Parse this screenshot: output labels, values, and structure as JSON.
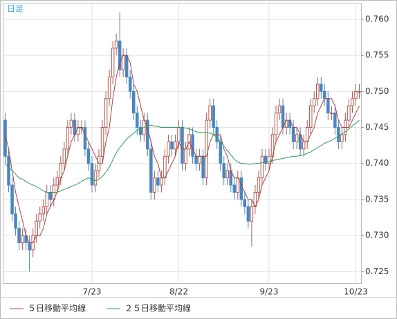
{
  "chart_data": {
    "type": "candlestick",
    "label": "日足",
    "categories": [
      null,
      null,
      null,
      null,
      null,
      null,
      null,
      null,
      null,
      null,
      null,
      null,
      null,
      null,
      null,
      null,
      null,
      null,
      null,
      null,
      null,
      null,
      null,
      null,
      null,
      "7/23",
      null,
      null,
      null,
      null,
      null,
      null,
      null,
      null,
      null,
      null,
      null,
      null,
      null,
      null,
      null,
      null,
      null,
      null,
      null,
      null,
      null,
      null,
      null,
      null,
      "8/22",
      null,
      null,
      null,
      null,
      null,
      null,
      null,
      null,
      null,
      null,
      null,
      null,
      null,
      null,
      null,
      null,
      null,
      null,
      null,
      null,
      null,
      null,
      null,
      null,
      null,
      "9/23",
      null,
      null,
      null,
      null,
      null,
      null,
      null,
      null,
      null,
      null,
      null,
      null,
      null,
      null,
      null,
      null,
      null,
      null,
      null,
      null,
      null,
      null,
      null,
      null,
      "10/23",
      null
    ],
    "open": [
      0.746,
      0.741,
      0.737,
      0.733,
      0.731,
      0.729,
      0.73,
      0.729,
      0.728,
      0.73,
      0.732,
      0.733,
      0.734,
      0.736,
      0.735,
      0.737,
      0.738,
      0.74,
      0.742,
      0.745,
      0.746,
      0.744,
      0.745,
      0.745,
      0.742,
      0.74,
      0.737,
      0.739,
      0.741,
      0.745,
      0.749,
      0.752,
      0.756,
      0.757,
      0.753,
      0.755,
      0.752,
      0.75,
      0.747,
      0.745,
      0.744,
      0.746,
      0.742,
      0.736,
      0.738,
      0.737,
      0.738,
      0.741,
      0.743,
      0.742,
      0.743,
      0.745,
      0.74,
      0.742,
      0.744,
      0.741,
      0.74,
      0.741,
      0.738,
      0.746,
      0.748,
      0.745,
      0.743,
      0.74,
      0.738,
      0.739,
      0.737,
      0.736,
      0.738,
      0.735,
      0.734,
      0.732,
      0.734,
      0.736,
      0.738,
      0.741,
      0.74,
      0.741,
      0.744,
      0.747,
      0.748,
      0.745,
      0.746,
      0.745,
      0.743,
      0.744,
      0.742,
      0.743,
      0.745,
      0.748,
      0.749,
      0.751,
      0.75,
      0.749,
      0.747,
      0.747,
      0.745,
      0.743,
      0.744,
      0.746,
      0.748,
      0.749,
      0.75
    ],
    "high": [
      0.747,
      0.742,
      0.738,
      0.734,
      0.732,
      0.731,
      0.731,
      0.73,
      0.731,
      0.733,
      0.734,
      0.735,
      0.737,
      0.737,
      0.738,
      0.739,
      0.741,
      0.743,
      0.746,
      0.747,
      0.747,
      0.746,
      0.746,
      0.746,
      0.743,
      0.741,
      0.74,
      0.742,
      0.746,
      0.75,
      0.753,
      0.757,
      0.758,
      0.761,
      0.756,
      0.756,
      0.753,
      0.751,
      0.748,
      0.746,
      0.747,
      0.747,
      0.743,
      0.739,
      0.739,
      0.739,
      0.742,
      0.744,
      0.744,
      0.744,
      0.746,
      0.746,
      0.743,
      0.745,
      0.745,
      0.742,
      0.742,
      0.742,
      0.747,
      0.749,
      0.749,
      0.746,
      0.744,
      0.741,
      0.74,
      0.74,
      0.738,
      0.739,
      0.739,
      0.736,
      0.735,
      0.735,
      0.737,
      0.739,
      0.742,
      0.742,
      0.742,
      0.745,
      0.748,
      0.749,
      0.749,
      0.747,
      0.747,
      0.746,
      0.745,
      0.745,
      0.744,
      0.746,
      0.749,
      0.75,
      0.752,
      0.752,
      0.751,
      0.75,
      0.748,
      0.748,
      0.746,
      0.745,
      0.747,
      0.749,
      0.75,
      0.751,
      0.751
    ],
    "low": [
      0.74,
      0.736,
      0.732,
      0.73,
      0.728,
      0.728,
      0.728,
      0.725,
      0.727,
      0.729,
      0.731,
      0.732,
      0.733,
      0.734,
      0.734,
      0.736,
      0.737,
      0.739,
      0.741,
      0.744,
      0.743,
      0.743,
      0.744,
      0.741,
      0.739,
      0.736,
      0.736,
      0.738,
      0.74,
      0.744,
      0.748,
      0.751,
      0.755,
      0.752,
      0.752,
      0.751,
      0.749,
      0.746,
      0.744,
      0.743,
      0.743,
      0.741,
      0.735,
      0.735,
      0.736,
      0.736,
      0.737,
      0.74,
      0.741,
      0.741,
      0.742,
      0.739,
      0.739,
      0.741,
      0.74,
      0.739,
      0.739,
      0.737,
      0.737,
      0.745,
      0.744,
      0.742,
      0.739,
      0.737,
      0.737,
      0.736,
      0.735,
      0.735,
      0.734,
      0.733,
      0.731,
      0.7285,
      0.733,
      0.735,
      0.737,
      0.739,
      0.739,
      0.74,
      0.743,
      0.746,
      0.744,
      0.744,
      0.744,
      0.742,
      0.742,
      0.741,
      0.741,
      0.742,
      0.744,
      0.747,
      0.748,
      0.749,
      0.748,
      0.746,
      0.746,
      0.744,
      0.742,
      0.742,
      0.743,
      0.745,
      0.747,
      0.748,
      0.749
    ],
    "close": [
      0.741,
      0.737,
      0.733,
      0.731,
      0.729,
      0.73,
      0.729,
      0.728,
      0.73,
      0.732,
      0.733,
      0.734,
      0.736,
      0.735,
      0.737,
      0.738,
      0.74,
      0.742,
      0.745,
      0.746,
      0.744,
      0.745,
      0.745,
      0.742,
      0.74,
      0.737,
      0.739,
      0.741,
      0.745,
      0.749,
      0.752,
      0.756,
      0.757,
      0.753,
      0.755,
      0.752,
      0.75,
      0.747,
      0.745,
      0.744,
      0.746,
      0.742,
      0.736,
      0.738,
      0.737,
      0.738,
      0.741,
      0.743,
      0.742,
      0.743,
      0.745,
      0.74,
      0.742,
      0.744,
      0.741,
      0.74,
      0.741,
      0.738,
      0.746,
      0.748,
      0.745,
      0.743,
      0.74,
      0.738,
      0.739,
      0.737,
      0.736,
      0.738,
      0.735,
      0.734,
      0.732,
      0.734,
      0.736,
      0.738,
      0.741,
      0.74,
      0.741,
      0.744,
      0.747,
      0.748,
      0.745,
      0.746,
      0.745,
      0.743,
      0.744,
      0.742,
      0.743,
      0.745,
      0.748,
      0.749,
      0.751,
      0.75,
      0.749,
      0.747,
      0.747,
      0.745,
      0.743,
      0.744,
      0.746,
      0.748,
      0.749,
      0.75,
      0.75
    ],
    "up_color": "#b5574f",
    "down_color": "#4a86c1",
    "series": [
      {
        "name": "５日移動平均線",
        "color": "#b0403c",
        "values": [
          0.744,
          0.742,
          0.739,
          0.736,
          0.734,
          0.732,
          0.73,
          0.729,
          0.729,
          0.73,
          0.73,
          0.731,
          0.733,
          0.734,
          0.735,
          0.736,
          0.738,
          0.739,
          0.741,
          0.743,
          0.744,
          0.745,
          0.745,
          0.744,
          0.743,
          0.742,
          0.741,
          0.74,
          0.74,
          0.743,
          0.745,
          0.749,
          0.752,
          0.754,
          0.755,
          0.755,
          0.754,
          0.751,
          0.75,
          0.748,
          0.746,
          0.745,
          0.743,
          0.741,
          0.74,
          0.738,
          0.738,
          0.739,
          0.74,
          0.741,
          0.743,
          0.742,
          0.742,
          0.743,
          0.742,
          0.741,
          0.741,
          0.741,
          0.741,
          0.743,
          0.744,
          0.744,
          0.744,
          0.742,
          0.741,
          0.739,
          0.738,
          0.738,
          0.737,
          0.736,
          0.735,
          0.735,
          0.734,
          0.735,
          0.737,
          0.738,
          0.739,
          0.741,
          0.743,
          0.744,
          0.745,
          0.746,
          0.746,
          0.745,
          0.745,
          0.744,
          0.743,
          0.743,
          0.744,
          0.745,
          0.747,
          0.748,
          0.749,
          0.749,
          0.749,
          0.748,
          0.746,
          0.745,
          0.745,
          0.745,
          0.746,
          0.747,
          0.748
        ]
      },
      {
        "name": "２５日移動平均線",
        "color": "#2a9d5c",
        "values": [
          0.74,
          0.7395,
          0.739,
          0.7385,
          0.738,
          0.7378,
          0.7375,
          0.7372,
          0.737,
          0.7368,
          0.7365,
          0.7362,
          0.736,
          0.736,
          0.736,
          0.736,
          0.7362,
          0.7364,
          0.7366,
          0.7368,
          0.737,
          0.7372,
          0.7375,
          0.7378,
          0.738,
          0.7378,
          0.7376,
          0.7378,
          0.7382,
          0.7388,
          0.7395,
          0.7405,
          0.7415,
          0.7422,
          0.7428,
          0.7434,
          0.7438,
          0.7442,
          0.7446,
          0.7448,
          0.745,
          0.7452,
          0.7453,
          0.7452,
          0.7451,
          0.745,
          0.745,
          0.745,
          0.745,
          0.745,
          0.745,
          0.745,
          0.7449,
          0.7448,
          0.7446,
          0.7444,
          0.7443,
          0.7443,
          0.7443,
          0.7442,
          0.744,
          0.7436,
          0.743,
          0.7424,
          0.7418,
          0.7412,
          0.7406,
          0.7402,
          0.74,
          0.74,
          0.7399,
          0.7399,
          0.74,
          0.74,
          0.7401,
          0.7402,
          0.7403,
          0.7404,
          0.7405,
          0.7406,
          0.7407,
          0.7408,
          0.7409,
          0.741,
          0.741,
          0.7411,
          0.7412,
          0.7414,
          0.7416,
          0.7419,
          0.7422,
          0.7425,
          0.7428,
          0.743,
          0.7432,
          0.7435,
          0.7438,
          0.7441,
          0.7444,
          0.7448,
          0.7452,
          0.7456,
          0.746
        ]
      }
    ],
    "ylim": [
      0.7234,
      0.7622
    ],
    "yticks": [
      0.725,
      {
        "value": 0.73,
        "label": "0.730"
      },
      0.735,
      {
        "value": 0.74,
        "label": "0.740"
      },
      0.745,
      {
        "value": 0.75,
        "label": "0.750"
      },
      0.755,
      {
        "value": 0.76,
        "label": "0.760"
      }
    ],
    "grid": true,
    "legend": "bottom"
  }
}
